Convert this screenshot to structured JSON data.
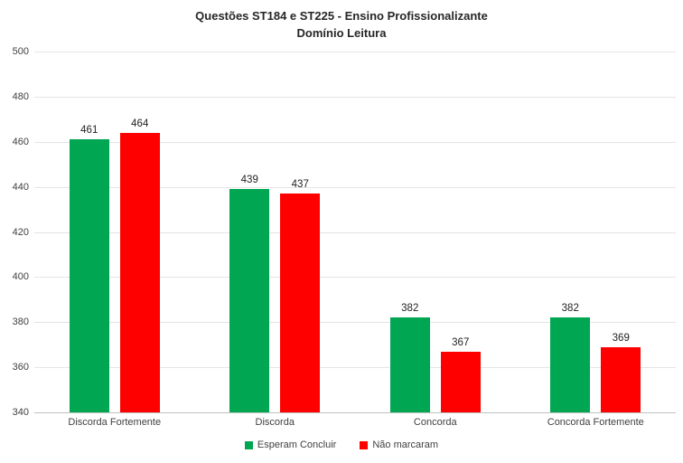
{
  "chart_data": {
    "type": "bar",
    "title_lines": [
      "Questões ST184 e ST225 - Ensino Profissionalizante",
      "Domínio Leitura"
    ],
    "categories": [
      "Discorda Fortemente",
      "Discorda",
      "Concorda",
      "Concorda Fortemente"
    ],
    "series": [
      {
        "name": "Esperam Concluir",
        "color": "#00A651",
        "values": [
          461,
          439,
          382,
          382
        ]
      },
      {
        "name": "Não marcaram",
        "color": "#FF0000",
        "values": [
          464,
          437,
          367,
          369
        ]
      }
    ],
    "ylim": [
      340,
      500
    ],
    "yticks": [
      340,
      360,
      380,
      400,
      420,
      440,
      460,
      480,
      500
    ],
    "grid": true,
    "legend_position": "bottom",
    "colors": {
      "gridline": "#e4e4e4",
      "axis_line": "#bfbfbf",
      "title_text": "#262626",
      "tick_text": "#404040",
      "value_label_text": "#1f1f1f",
      "background": "#ffffff"
    }
  }
}
